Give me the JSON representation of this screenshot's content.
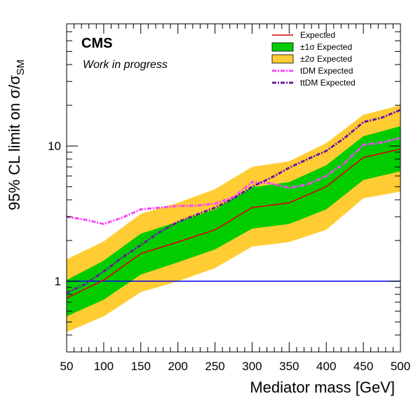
{
  "chart_data": {
    "type": "line",
    "cms_label": "CMS",
    "status_label": "Work in progress",
    "xlabel": "Mediator mass [GeV]",
    "ylabel_main": "95% CL limit on  ",
    "ylabel_sigma": "σ/σ",
    "ylabel_sub": "SM",
    "xlim": [
      50,
      500
    ],
    "ylim": [
      0.3,
      80
    ],
    "yscale": "log",
    "x_ticks": [
      "50",
      "100",
      "150",
      "200",
      "250",
      "300",
      "350",
      "400",
      "450",
      "500"
    ],
    "y_ticks": [
      "1",
      "10"
    ],
    "reference_line": {
      "y": 1,
      "color": "#0000ee"
    },
    "x": [
      50,
      100,
      150,
      200,
      250,
      300,
      350,
      400,
      450,
      500
    ],
    "expected": [
      0.75,
      1.02,
      1.6,
      1.95,
      2.4,
      3.5,
      3.8,
      5.0,
      8.2,
      9.5
    ],
    "band_1sigma": {
      "low": [
        0.55,
        0.73,
        1.12,
        1.38,
        1.72,
        2.45,
        2.65,
        3.4,
        5.6,
        6.5
      ],
      "high": [
        1.02,
        1.42,
        2.25,
        2.75,
        3.4,
        4.95,
        5.4,
        7.2,
        11.8,
        14.0
      ]
    },
    "band_2sigma": {
      "low": [
        0.42,
        0.55,
        0.83,
        1.0,
        1.25,
        1.8,
        1.95,
        2.4,
        4.1,
        4.6
      ],
      "high": [
        1.45,
        1.97,
        3.15,
        3.8,
        4.8,
        7.0,
        7.7,
        10.5,
        17.0,
        20.0
      ]
    },
    "series": [
      {
        "name": "tDM Expected",
        "color": "#ff44ff",
        "x": [
          50,
          75,
          100,
          125,
          150,
          175,
          200,
          225,
          250,
          275,
          300,
          325,
          350,
          375,
          400,
          425,
          450,
          475,
          500
        ],
        "values": [
          3.0,
          2.85,
          2.65,
          2.95,
          3.4,
          3.5,
          3.6,
          3.62,
          3.75,
          4.2,
          5.4,
          5.3,
          4.9,
          5.2,
          6.0,
          7.5,
          10.2,
          10.6,
          11.5
        ]
      },
      {
        "name": "ttDM Expected",
        "color": "#6a1b9a",
        "x": [
          50,
          75,
          100,
          125,
          150,
          175,
          200,
          225,
          250,
          275,
          300,
          325,
          350,
          375,
          400,
          425,
          450,
          475,
          500
        ],
        "values": [
          0.82,
          0.95,
          1.18,
          1.5,
          1.85,
          2.3,
          2.75,
          3.1,
          3.5,
          4.1,
          5.0,
          5.8,
          6.9,
          8.0,
          9.2,
          11.5,
          15.0,
          16.2,
          18.5
        ]
      }
    ],
    "legend": {
      "position": "top-right",
      "entries": [
        {
          "label": "Expected",
          "color": "#dd0000",
          "kind": "line"
        },
        {
          "label": "±1σ Expected",
          "color": "#00cc00",
          "kind": "fill"
        },
        {
          "label": "±2σ Expected",
          "color": "#ffcc33",
          "kind": "fill"
        },
        {
          "label": "tDM Expected",
          "color": "#ff44ff",
          "kind": "dashdot"
        },
        {
          "label": "ttDM Expected",
          "color": "#6a1b9a",
          "kind": "dashdot"
        }
      ]
    },
    "colors": {
      "expected": "#dd0000",
      "band_1sigma": "#00cc00",
      "band_2sigma": "#ffcc33"
    }
  }
}
